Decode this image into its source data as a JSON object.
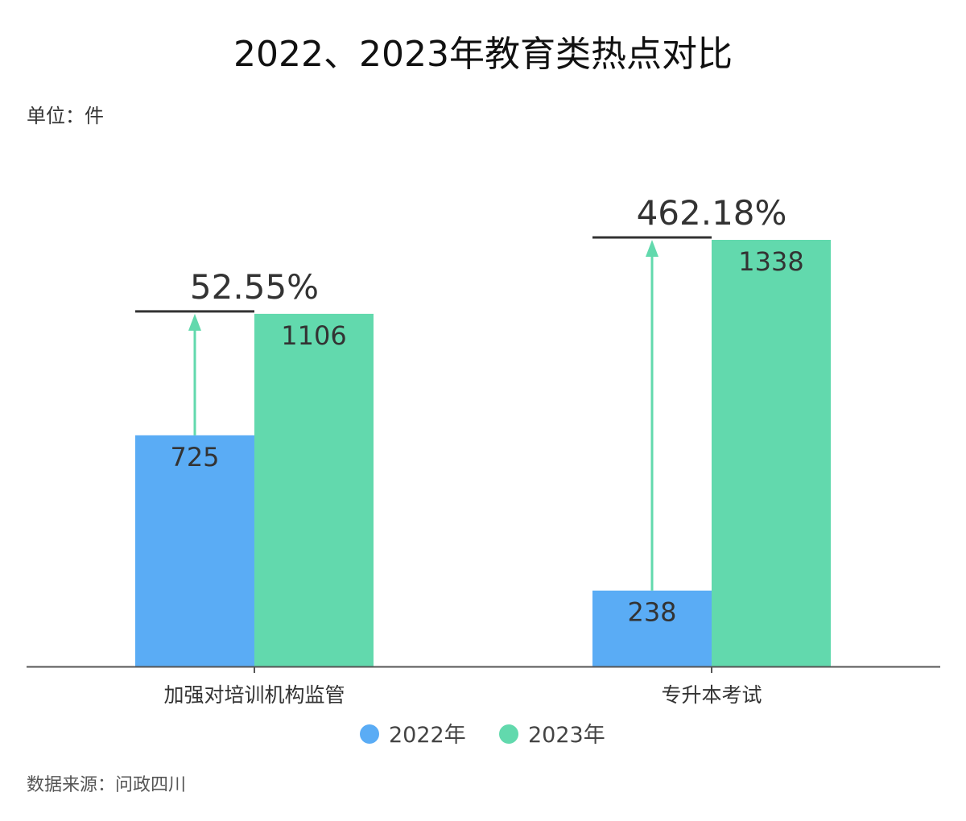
{
  "chart_data": {
    "type": "bar",
    "title": "2022、2023年教育类热点对比",
    "unit_label": "单位：件",
    "source": "数据来源：问政四川",
    "categories": [
      "加强对培训机构监管",
      "专升本考试"
    ],
    "series": [
      {
        "name": "2022年",
        "values": [
          725,
          238
        ],
        "color": "#5aacf5"
      },
      {
        "name": "2023年",
        "values": [
          1106,
          1338
        ],
        "color": "#62d9ad"
      }
    ],
    "growth_labels": [
      "52.55%",
      "462.18%"
    ],
    "arrow_color": "#62d9ad",
    "legend_position": "bottom",
    "grid": false,
    "ylim": [
      0,
      1338
    ]
  }
}
